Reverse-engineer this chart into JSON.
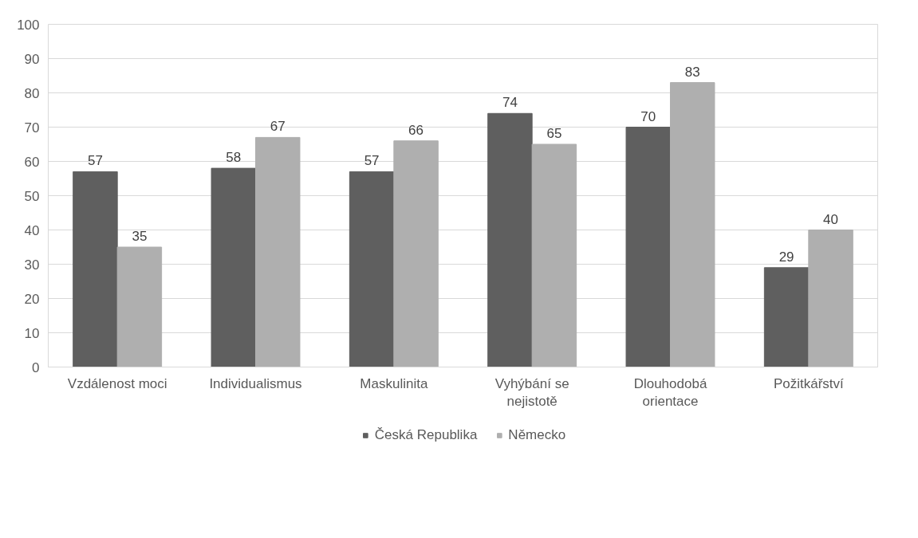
{
  "chart_data": {
    "type": "bar",
    "categories": [
      "Vzdálenost moci",
      "Individualismus",
      "Maskulinita",
      "Vyhýbání se nejistotě",
      "Dlouhodobá orientace",
      "Požitkářství"
    ],
    "series": [
      {
        "name": "Česká Republika",
        "color": "#5f5f5f",
        "values": [
          57,
          58,
          57,
          74,
          70,
          29
        ]
      },
      {
        "name": "Německo",
        "color": "#afafaf",
        "values": [
          35,
          67,
          66,
          65,
          83,
          40
        ]
      }
    ],
    "ylim": [
      0,
      100
    ],
    "yticks": [
      0,
      10,
      20,
      30,
      40,
      50,
      60,
      70,
      80,
      90,
      100
    ],
    "grid": "y",
    "legend": "bottom",
    "data_labels": true
  }
}
